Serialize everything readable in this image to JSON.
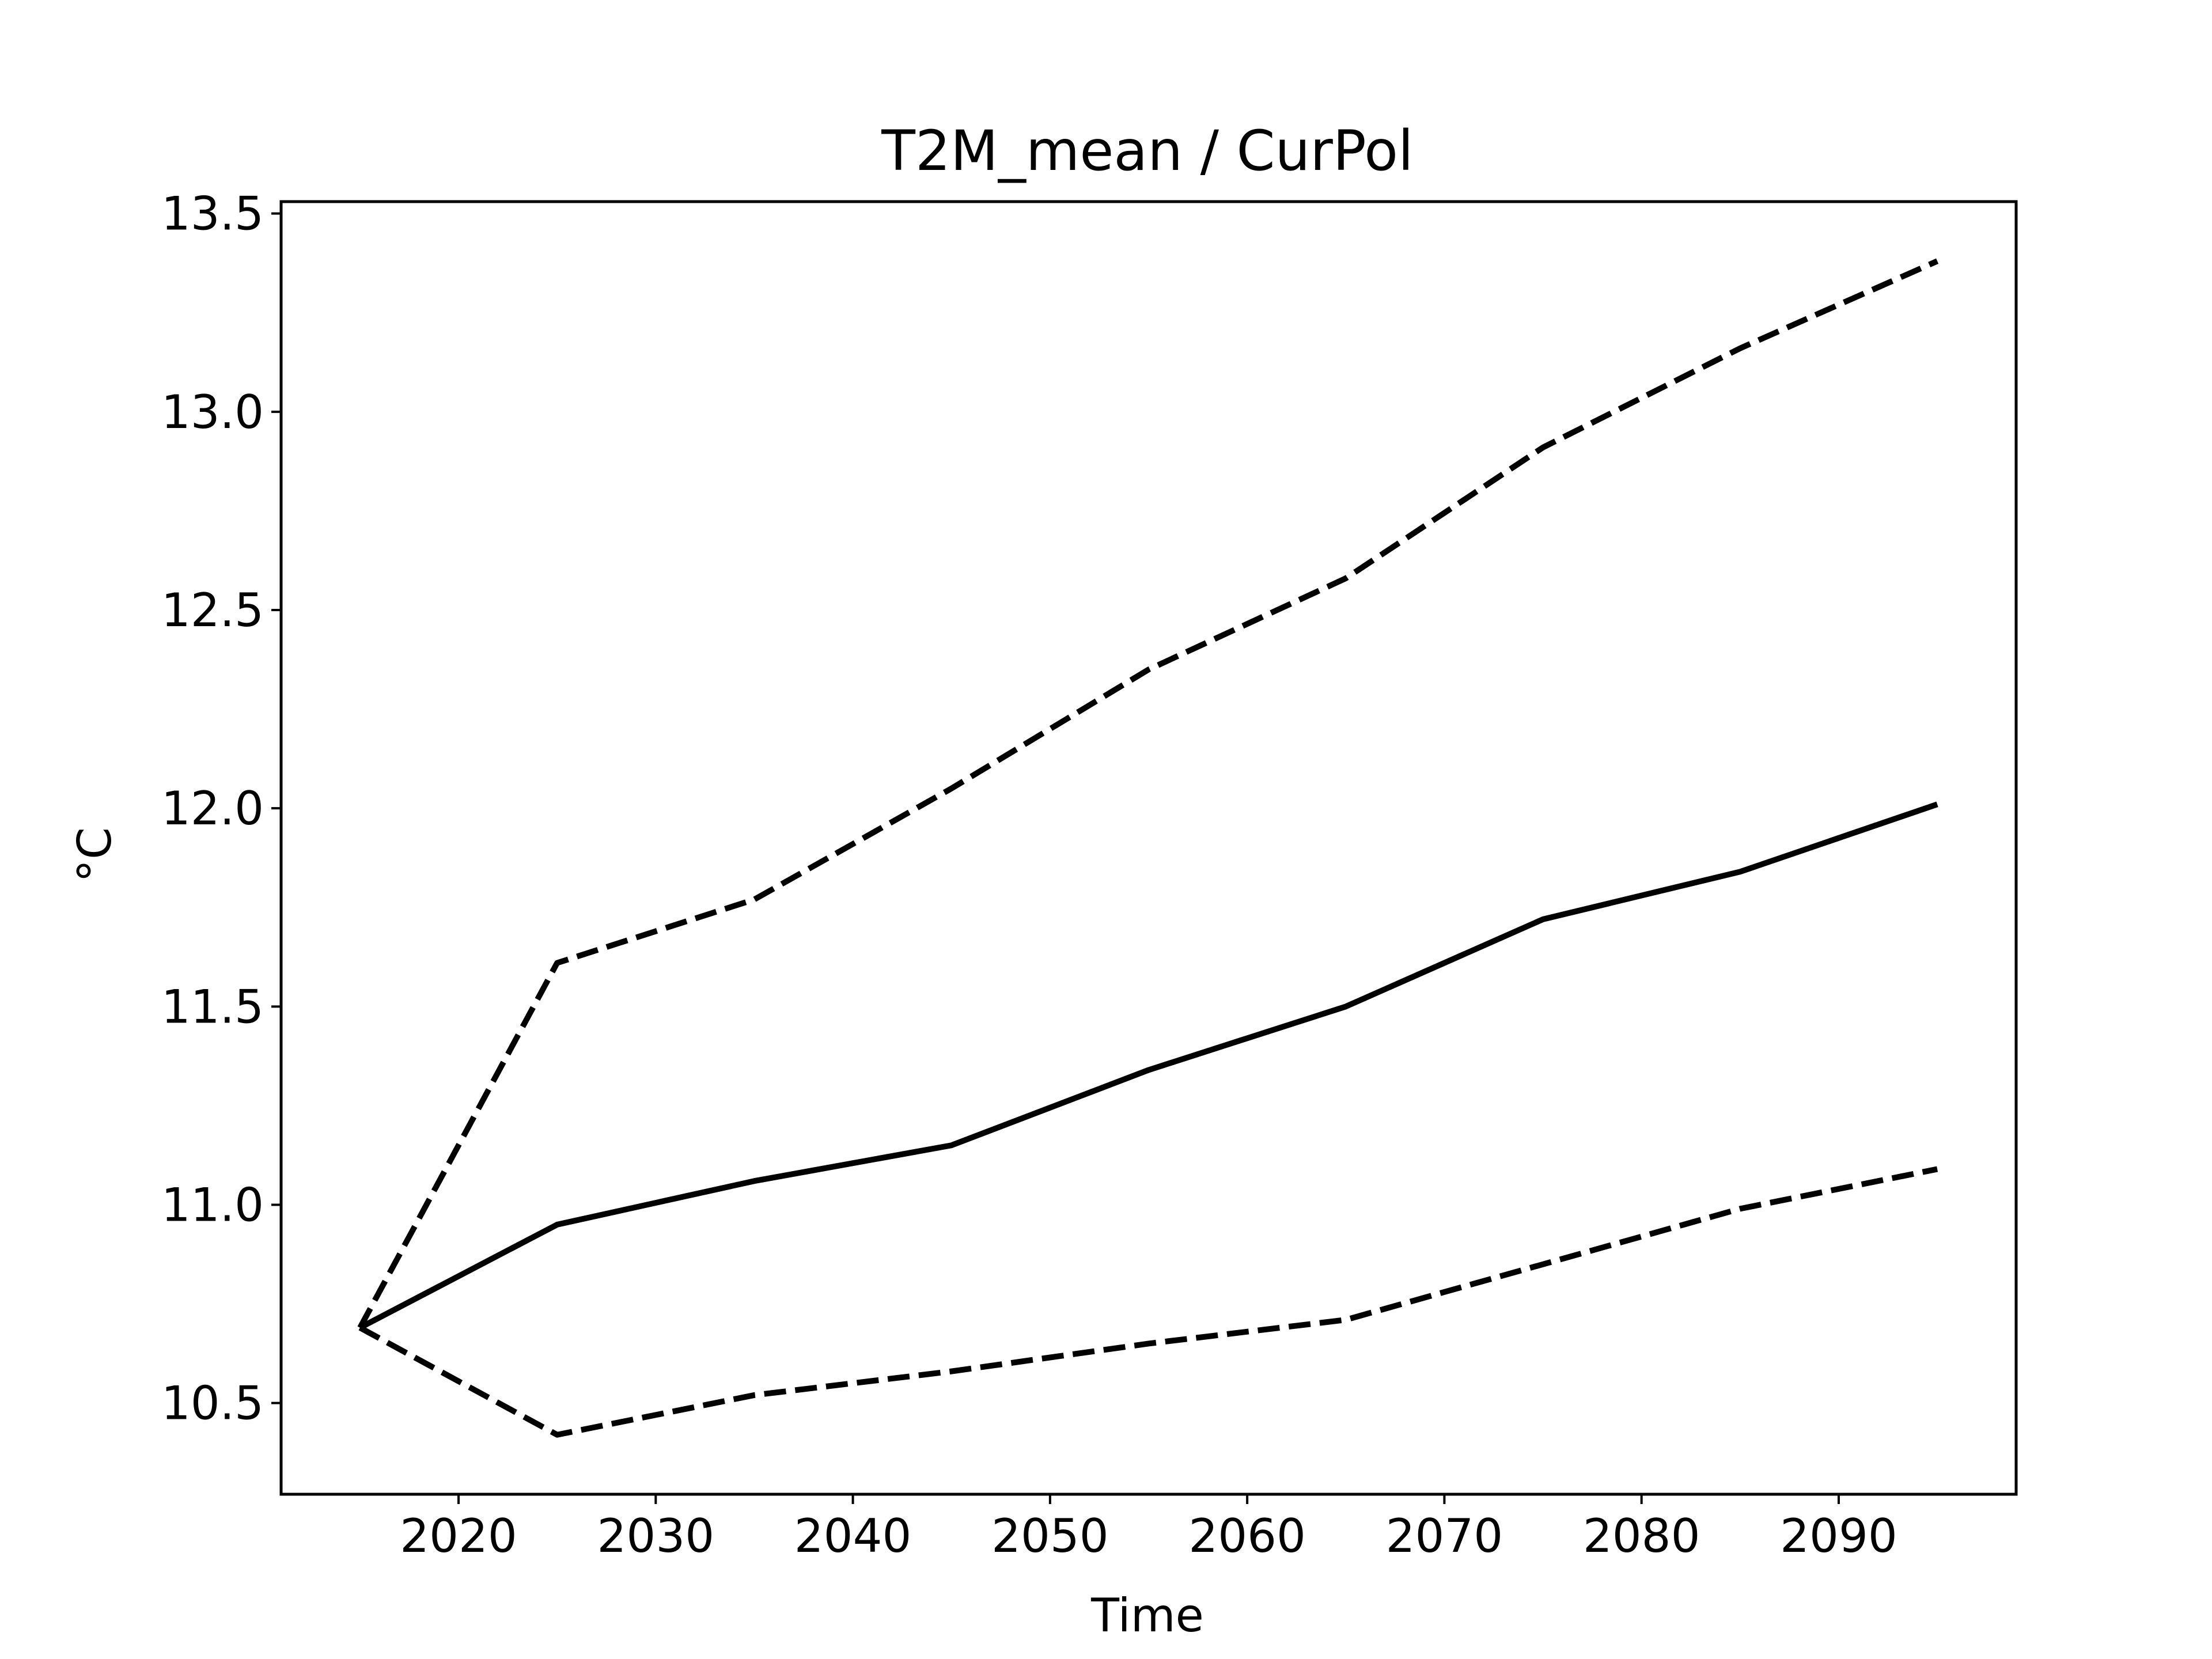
{
  "chart_data": {
    "type": "line",
    "title": "T2M_mean / CurPol",
    "xlabel": "Time",
    "ylabel": "°C",
    "xlim": [
      2011,
      2099
    ],
    "ylim": [
      10.27,
      13.53
    ],
    "xticks": [
      2020,
      2030,
      2040,
      2050,
      2060,
      2070,
      2080,
      2090
    ],
    "yticks": [
      10.5,
      11.0,
      11.5,
      12.0,
      12.5,
      13.0,
      13.5
    ],
    "ytick_labels": [
      "10.5",
      "11.0",
      "11.5",
      "12.0",
      "12.5",
      "13.0",
      "13.5"
    ],
    "grid": false,
    "x": [
      2015,
      2025,
      2035,
      2045,
      2055,
      2065,
      2075,
      2085,
      2095
    ],
    "series": [
      {
        "style": "solid",
        "color": "#000000",
        "values": [
          10.69,
          10.95,
          11.06,
          11.15,
          11.34,
          11.5,
          11.72,
          11.84,
          12.01
        ]
      },
      {
        "style": "dashed",
        "color": "#000000",
        "values": [
          10.69,
          11.61,
          11.77,
          12.05,
          12.35,
          12.58,
          12.91,
          13.16,
          13.38
        ]
      },
      {
        "style": "dashed",
        "color": "#000000",
        "values": [
          10.69,
          10.42,
          10.52,
          10.58,
          10.65,
          10.71,
          10.85,
          10.99,
          11.09
        ]
      }
    ]
  }
}
